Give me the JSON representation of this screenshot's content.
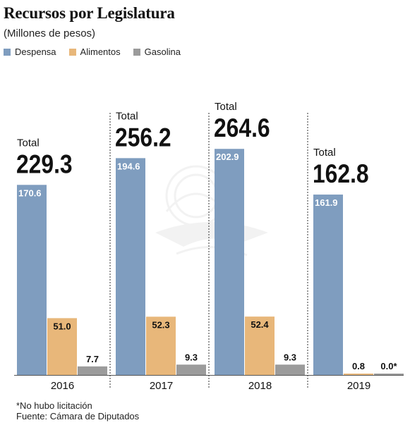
{
  "title": "Recursos por Legislatura",
  "subtitle": "(Millones de pesos)",
  "legend": [
    {
      "label": "Despensa",
      "color": "#7f9dbf"
    },
    {
      "label": "Alimentos",
      "color": "#e8b77a"
    },
    {
      "label": "Gasolina",
      "color": "#9b9b9b"
    }
  ],
  "notes": {
    "footnote": "*No hubo licitación",
    "source": "Fuente: Cámara de Diputados"
  },
  "chart_data": {
    "type": "bar",
    "title": "Recursos por Legislatura",
    "subtitle": "(Millones de pesos)",
    "categories": [
      "2016",
      "2017",
      "2018",
      "2019"
    ],
    "series": [
      {
        "name": "Despensa",
        "color": "#7f9dbf",
        "values": [
          170.6,
          194.6,
          202.9,
          161.9
        ]
      },
      {
        "name": "Alimentos",
        "color": "#e8b77a",
        "values": [
          51.0,
          52.3,
          52.4,
          0.8
        ]
      },
      {
        "name": "Gasolina",
        "color": "#9b9b9b",
        "values": [
          7.7,
          9.3,
          9.3,
          0.0
        ]
      }
    ],
    "data_labels": [
      [
        "170.6",
        "194.6",
        "202.9",
        "161.9"
      ],
      [
        "51.0",
        "52.3",
        "52.4",
        "0.8"
      ],
      [
        "7.7",
        "9.3",
        "9.3",
        "0.0*"
      ]
    ],
    "total_label": "Total",
    "totals": [
      "229.3",
      "256.2",
      "264.6",
      "162.8"
    ],
    "xlabel": "",
    "ylabel": "",
    "ylim": [
      0,
      210
    ],
    "grid": false,
    "legend_position": "top-left"
  }
}
